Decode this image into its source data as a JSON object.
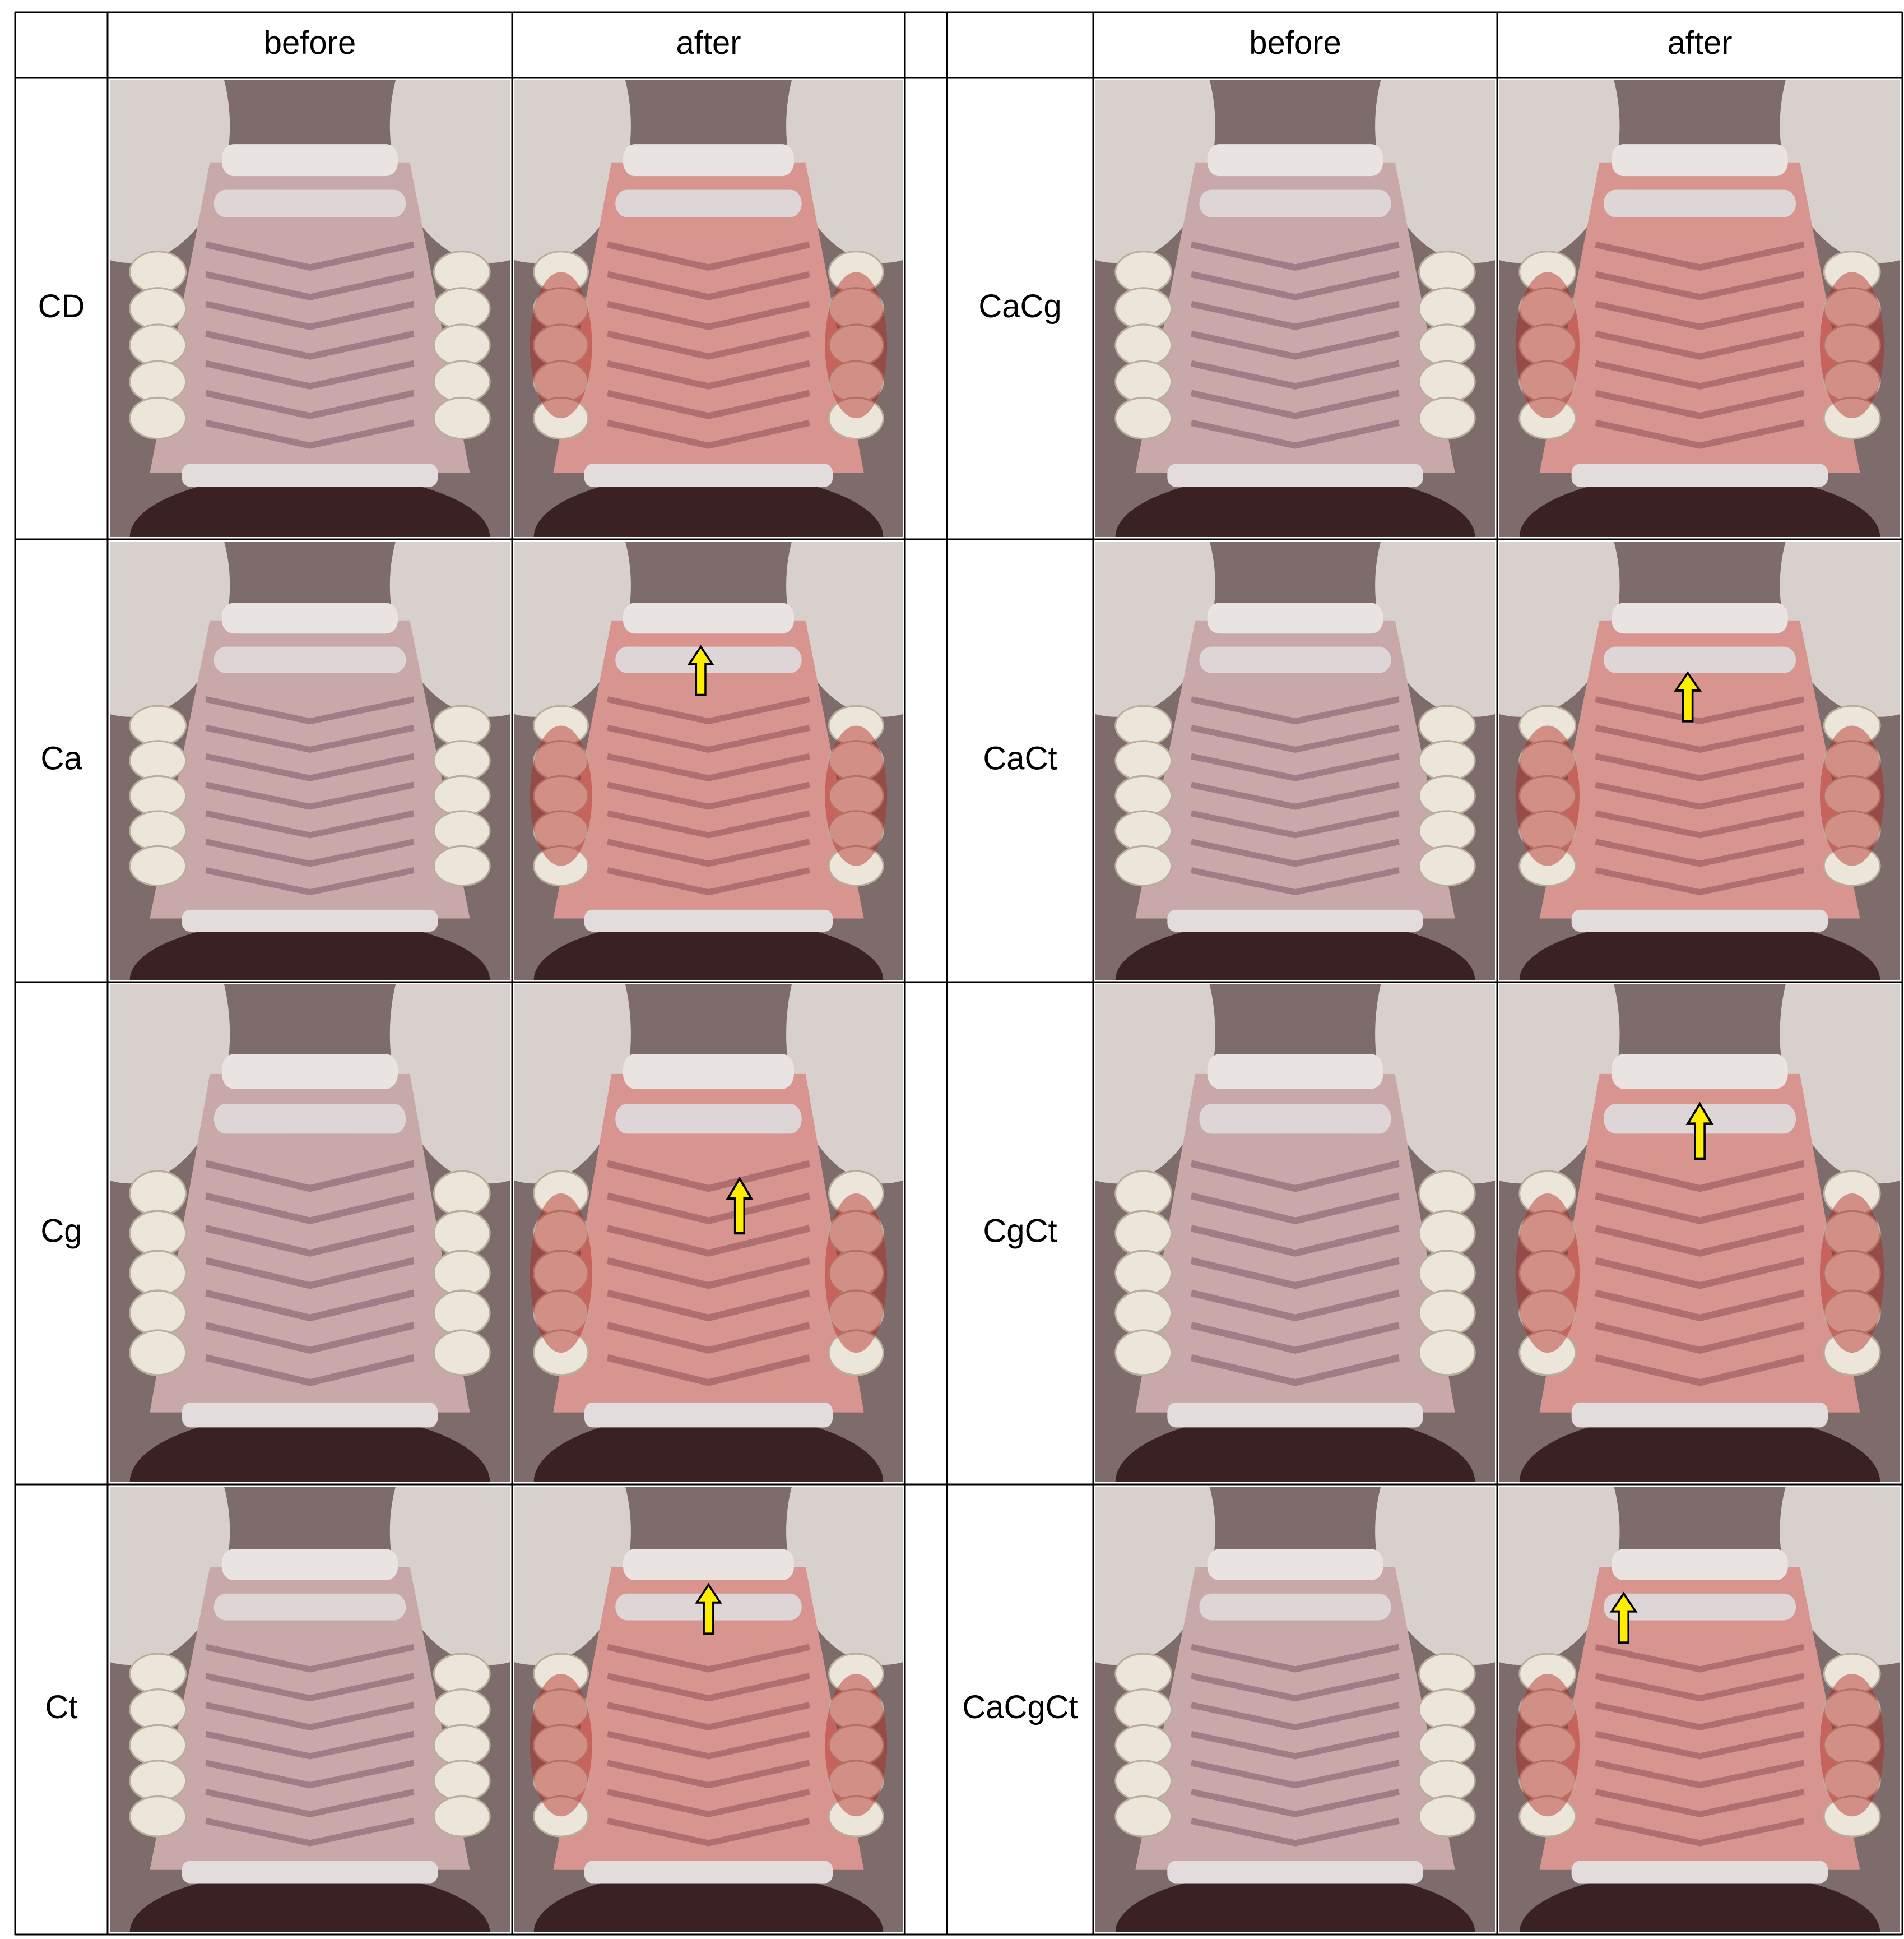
{
  "headers": [
    "before",
    "after",
    "before",
    "after"
  ],
  "left_rows": [
    "CD",
    "Ca",
    "Cg",
    "Ct"
  ],
  "right_rows": [
    "CaCg",
    "CaCt",
    "CgCt",
    "CaCgCt"
  ]
}
